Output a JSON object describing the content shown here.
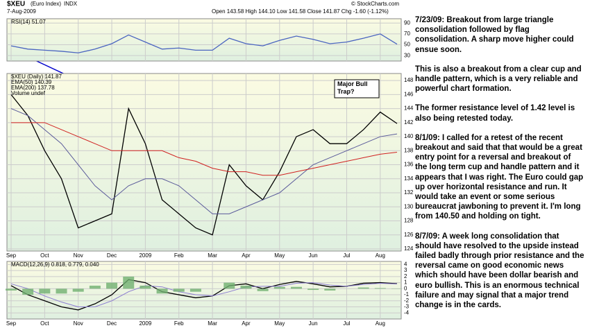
{
  "header": {
    "symbol": "$XEU",
    "name": "(Euro Index)",
    "exchange": "INDX",
    "date": "7-Aug-2009",
    "quote": "Open 143.58  High 144.10  Low 141.58  Close 141.87  Chg -1.60 (-1.12%)",
    "credit": "© StockCharts.com"
  },
  "annotation": "Major Bull Trap?",
  "legend_extra": "Volume undef",
  "notes": [
    "7/23/09:  Breakout from large triangle consolidation followed by flag consolidation.  A sharp move higher could ensue soon.",
    "This is also a breakout from a clear cup and handle pattern, which is a very reliable and powerful chart formation.",
    "The former resistance level of 1.42 level is also being retested today.",
    "8/1/09:  I called for a retest of the recent breakout and said that that would be a great entry point for a reversal and breakout of the long term cup and handle pattern and it appears that I was right.  The Euro could gap up over horizontal resistance and run.  It would take an event or some serious bureaucrat jawboning to prevent it.  I'm long from 140.50 and holding on tight.",
    "8/7/09:  A week long consolidation that should have resolved to the upside instead failed badly through prior resistance and the reversal came on good economic news which should have been dollar bearish and euro bullish.  This is an enormous technical failure and may signal that a major trend change is in the cards."
  ],
  "chart_data": [
    {
      "type": "line",
      "ylim": [
        20,
        98
      ],
      "yticks": [
        30,
        50,
        70,
        90
      ],
      "grid": true,
      "series": [
        {
          "name": "RSI(14) 51.07",
          "color": "#4a64c0",
          "values": [
            48,
            42,
            40,
            38,
            35,
            42,
            52,
            68,
            55,
            42,
            44,
            40,
            40,
            62,
            52,
            48,
            58,
            66,
            60,
            52,
            55,
            62,
            70,
            51.07
          ]
        }
      ]
    },
    {
      "type": "line",
      "ylim": [
        123.7,
        149
      ],
      "yticks": [
        124,
        126,
        128,
        130,
        132,
        134,
        136,
        138,
        140,
        142,
        144,
        146,
        148
      ],
      "grid": true,
      "categories": [
        "Sep",
        null,
        "Oct",
        null,
        "Nov",
        null,
        "Dec",
        null,
        "2009",
        null,
        "Feb",
        null,
        "Mar",
        null,
        "Apr",
        null,
        "May",
        null,
        "Jun",
        null,
        "Jul",
        null,
        "Aug",
        null
      ],
      "series": [
        {
          "name": "$XEU (Daily) 141.87",
          "color": "#000000",
          "values": [
            146,
            143,
            138,
            134,
            127,
            128,
            129,
            144,
            139,
            131,
            129,
            127,
            126,
            136,
            133,
            131,
            135,
            140,
            141,
            139,
            139,
            141,
            143.5,
            141.87
          ]
        },
        {
          "name": "EMA(50) 140.39",
          "color": "#5a5a9a",
          "values": [
            144,
            143,
            141,
            139,
            136,
            133,
            131,
            133,
            134,
            134,
            133,
            131,
            129,
            129,
            130,
            131,
            132,
            134,
            136,
            137,
            138,
            139,
            140,
            140.39
          ]
        },
        {
          "name": "EMA(200) 137.78",
          "color": "#d02020",
          "values": [
            142,
            142,
            142,
            141,
            140,
            139,
            138,
            138,
            138,
            138,
            137,
            136.5,
            135.5,
            135,
            135,
            134.5,
            134.5,
            135,
            135.5,
            136,
            136.5,
            137,
            137.5,
            137.78
          ]
        }
      ]
    },
    {
      "type": "line",
      "ylim": [
        -5,
        4.5
      ],
      "yticks": [
        -4,
        -3,
        -2,
        -1,
        0,
        1,
        2,
        3,
        4
      ],
      "grid": true,
      "legend": "MACD(12,26,9) 0.818, 0.779, 0.040",
      "series": [
        {
          "name": "MACD",
          "color": "#000000",
          "values": [
            0.5,
            -1,
            -2,
            -3,
            -3.5,
            -2.5,
            -1,
            1.5,
            1,
            -0.5,
            -1,
            -1.5,
            -1.2,
            0.5,
            0.8,
            0,
            0.7,
            1.2,
            0.8,
            0.3,
            0.4,
            0.9,
            1,
            0.818
          ]
        },
        {
          "name": "Signal",
          "color": "#8a7ad0",
          "values": [
            0.8,
            0,
            -1.2,
            -2.2,
            -3,
            -3,
            -2,
            -0.5,
            0.5,
            0.3,
            -0.5,
            -1,
            -1.2,
            -0.5,
            0.3,
            0.4,
            0.4,
            0.9,
            1,
            0.6,
            0.4,
            0.7,
            0.9,
            0.779
          ]
        },
        {
          "name": "Histogram",
          "color": "#70b070",
          "values": [
            -0.3,
            -1,
            -0.8,
            -0.8,
            -0.5,
            0.5,
            1,
            2,
            0.5,
            -0.8,
            -0.5,
            -0.5,
            0,
            1,
            0.5,
            -0.4,
            0.3,
            0.3,
            -0.2,
            -0.3,
            0,
            0.2,
            0.1,
            0.04
          ]
        }
      ]
    }
  ]
}
